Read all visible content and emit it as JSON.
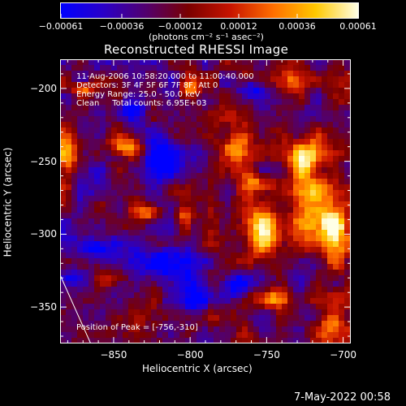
{
  "chart_data": {
    "type": "heatmap",
    "title": "Reconstructed RHESSI Image",
    "xlabel": "Heliocentric X (arcsec)",
    "ylabel": "Heliocentric Y (arcsec)",
    "xlim": [
      -885,
      -695
    ],
    "ylim": [
      -375,
      -180
    ],
    "x_ticks": [
      -850,
      -800,
      -750,
      -700
    ],
    "y_ticks": [
      -200,
      -250,
      -300,
      -350
    ],
    "x_tick_labels": [
      "−850",
      "−800",
      "−750",
      "−700"
    ],
    "y_tick_labels": [
      "−200",
      "−250",
      "−300",
      "−350"
    ],
    "colorbar": {
      "range": [
        -0.00061,
        0.00061
      ],
      "ticks": [
        -0.00061,
        -0.00036,
        -0.00012,
        0.00012,
        0.00036,
        0.00061
      ],
      "tick_labels": [
        "−0.00061",
        "−0.00036",
        "−0.00012",
        "0.00012",
        "0.00036",
        "0.00061"
      ],
      "unit_label": "(photons cm⁻² s⁻¹ asec⁻²)",
      "colormap": [
        "#0000ff",
        "#2a00c8",
        "#52006e",
        "#7a0000",
        "#c81400",
        "#ff6e00",
        "#ffc800",
        "#ffffe6"
      ]
    },
    "annotations": {
      "time_range": "11-Aug-2006 10:58:20.000 to 11:00:40.000",
      "detectors": "Detectors: 3F 4F 5F 6F 7F 8F, Att 0",
      "energy": "Energy Range: 25.0 - 50.0 keV",
      "clean": "Clean     Total counts: 6.95E+03",
      "peak": "Position of Peak = [-756,-310]"
    },
    "peak_position": [
      -756,
      -310
    ],
    "limb_line": {
      "x": [
        -885,
        -865
      ],
      "y": [
        -328,
        -375
      ]
    },
    "hot_regions": [
      {
        "x": -752,
        "y": -297,
        "rx": 13,
        "ry": 17,
        "level": 0.95
      },
      {
        "x": -718,
        "y": -285,
        "rx": 12,
        "ry": 20,
        "level": 0.9
      },
      {
        "x": -725,
        "y": -250,
        "rx": 10,
        "ry": 15,
        "level": 0.8
      },
      {
        "x": -705,
        "y": -300,
        "rx": 8,
        "ry": 20,
        "level": 0.8
      },
      {
        "x": -880,
        "y": -247,
        "rx": 10,
        "ry": 15,
        "level": 0.85
      },
      {
        "x": -803,
        "y": -290,
        "rx": 6,
        "ry": 10,
        "level": 0.8
      },
      {
        "x": -827,
        "y": -285,
        "rx": 9,
        "ry": 5,
        "level": 0.7
      },
      {
        "x": -842,
        "y": -240,
        "rx": 10,
        "ry": 6,
        "level": 0.75
      },
      {
        "x": -870,
        "y": -200,
        "rx": 8,
        "ry": 4,
        "level": 0.7
      },
      {
        "x": -800,
        "y": -200,
        "rx": 6,
        "ry": 6,
        "level": 0.65
      },
      {
        "x": -770,
        "y": -240,
        "rx": 8,
        "ry": 10,
        "level": 0.6
      },
      {
        "x": -755,
        "y": -265,
        "rx": 9,
        "ry": 6,
        "level": 0.65
      },
      {
        "x": -707,
        "y": -360,
        "rx": 8,
        "ry": 10,
        "level": 0.7
      },
      {
        "x": -745,
        "y": -345,
        "rx": 10,
        "ry": 6,
        "level": 0.6
      },
      {
        "x": -850,
        "y": -330,
        "rx": 8,
        "ry": 6,
        "level": 0.5
      },
      {
        "x": -735,
        "y": -195,
        "rx": 10,
        "ry": 8,
        "level": 0.5
      }
    ],
    "cold_regions": [
      {
        "x": -815,
        "y": -320,
        "rx": 14,
        "ry": 12,
        "level": -0.75
      },
      {
        "x": -820,
        "y": -250,
        "rx": 10,
        "ry": 15,
        "level": -0.6
      },
      {
        "x": -860,
        "y": -310,
        "rx": 8,
        "ry": 6,
        "level": -0.65
      },
      {
        "x": -770,
        "y": -335,
        "rx": 9,
        "ry": 8,
        "level": -0.6
      },
      {
        "x": -840,
        "y": -215,
        "rx": 8,
        "ry": 6,
        "level": -0.5
      },
      {
        "x": -880,
        "y": -330,
        "rx": 8,
        "ry": 6,
        "level": -0.55
      },
      {
        "x": -795,
        "y": -345,
        "rx": 10,
        "ry": 8,
        "level": -0.6
      },
      {
        "x": -760,
        "y": -200,
        "rx": 10,
        "ry": 6,
        "level": -0.55
      }
    ]
  },
  "footer": {
    "date": "7-May-2022 00:58"
  }
}
